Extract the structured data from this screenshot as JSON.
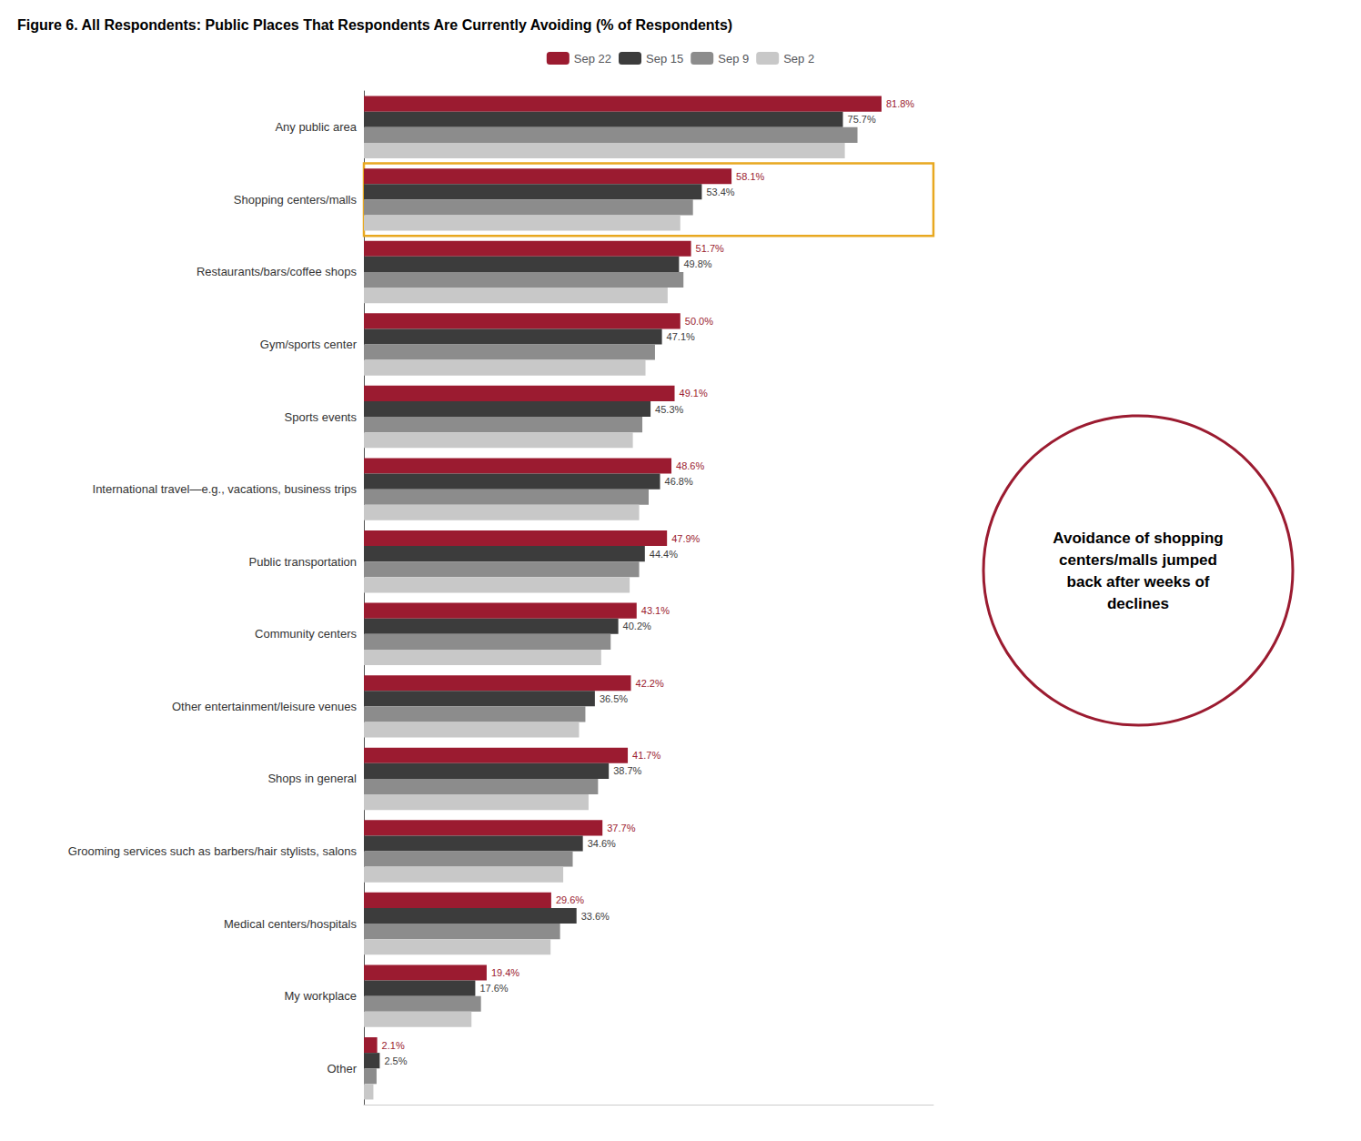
{
  "chart_data": {
    "type": "bar",
    "orientation": "horizontal",
    "title": "Figure 6. All Respondents: Public Places That Respondents Are Currently Avoiding (% of Respondents)",
    "categories": [
      "Any public area",
      "Shopping centers/malls",
      "Restaurants/bars/coffee shops",
      "Gym/sports center",
      "Sports events",
      "International travel—e.g., vacations, business trips",
      "Public transportation",
      "Community centers",
      "Other entertainment/leisure venues",
      "Shops in general",
      "Grooming services such as barbers/hair stylists, salons",
      "Medical centers/hospitals",
      "My workplace",
      "Other"
    ],
    "series": [
      {
        "name": "Sep 22",
        "color": "#9B1B30",
        "values": [
          81.8,
          58.1,
          51.7,
          50.0,
          49.1,
          48.6,
          47.9,
          43.1,
          42.2,
          41.7,
          37.7,
          29.6,
          19.4,
          2.1
        ],
        "value_labels": [
          "81.8%",
          "58.1%",
          "51.7%",
          "50.0%",
          "49.1%",
          "48.6%",
          "47.9%",
          "43.1%",
          "42.2%",
          "41.7%",
          "37.7%",
          "29.6%",
          "19.4%",
          "2.1%"
        ]
      },
      {
        "name": "Sep 15",
        "color": "#3C3C3C",
        "values": [
          75.7,
          53.4,
          49.8,
          47.1,
          45.3,
          46.8,
          44.4,
          40.2,
          36.5,
          38.7,
          34.6,
          33.6,
          17.6,
          2.5
        ],
        "value_labels": [
          "75.7%",
          "53.4%",
          "49.8%",
          "47.1%",
          "45.3%",
          "46.8%",
          "44.4%",
          "40.2%",
          "36.5%",
          "38.7%",
          "34.6%",
          "33.6%",
          "17.6%",
          "2.5%"
        ]
      },
      {
        "name": "Sep 9",
        "color": "#8C8C8C",
        "values": [
          78.0,
          52.0,
          50.5,
          46.0,
          44.0,
          45.0,
          43.5,
          39.0,
          35.0,
          37.0,
          33.0,
          31.0,
          18.5,
          2.0
        ]
      },
      {
        "name": "Sep 2",
        "color": "#C8C8C8",
        "values": [
          76.0,
          50.0,
          48.0,
          44.5,
          42.5,
          43.5,
          42.0,
          37.5,
          34.0,
          35.5,
          31.5,
          29.5,
          17.0,
          1.5
        ]
      }
    ],
    "xlim": [
      0,
      90
    ],
    "tick_labels": "y",
    "grid": false,
    "legend": "top",
    "annotations": [
      {
        "text": "Avoidance of shopping\ncenters/malls jumped\nback after weeks of\ndeclines",
        "color": "#9B1B30",
        "category": "Shopping centers/malls",
        "highlight_color": "#E8A820"
      }
    ]
  }
}
